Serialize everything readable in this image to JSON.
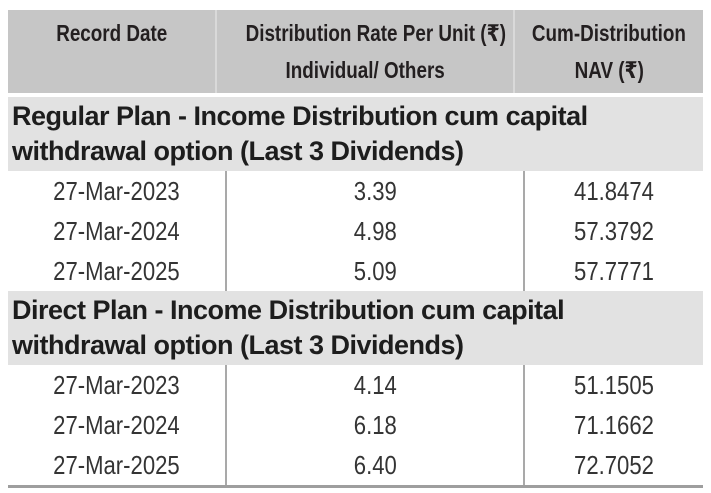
{
  "table": {
    "header": {
      "col1": "Record Date",
      "col2_line1": "Distribution Rate Per Unit (₹)",
      "col2_line2": "Individual/ Others",
      "col3_line1": "Cum-Distribution",
      "col3_line2": "NAV (₹)"
    },
    "sections": [
      {
        "title": "Regular Plan - Income Distribution cum capital withdrawal option (Last 3 Dividends)",
        "rows": [
          {
            "record_date": "27-Mar-2023",
            "rate": "3.39",
            "nav": "41.8474"
          },
          {
            "record_date": "27-Mar-2024",
            "rate": "4.98",
            "nav": "57.3792"
          },
          {
            "record_date": "27-Mar-2025",
            "rate": "5.09",
            "nav": "57.7771"
          }
        ]
      },
      {
        "title": "Direct Plan - Income Distribution cum capital withdrawal option (Last 3 Dividends)",
        "rows": [
          {
            "record_date": "27-Mar-2023",
            "rate": "4.14",
            "nav": "51.1505"
          },
          {
            "record_date": "27-Mar-2024",
            "rate": "6.18",
            "nav": "71.1662"
          },
          {
            "record_date": "27-Mar-2025",
            "rate": "6.40",
            "nav": "72.7052"
          }
        ]
      }
    ],
    "colors": {
      "header_bg": "#c6c6c6",
      "section_bg": "#e2e2e2",
      "text": "#231f20",
      "divider": "#a9a9a9",
      "bottom_border": "#9e9e9e"
    }
  }
}
